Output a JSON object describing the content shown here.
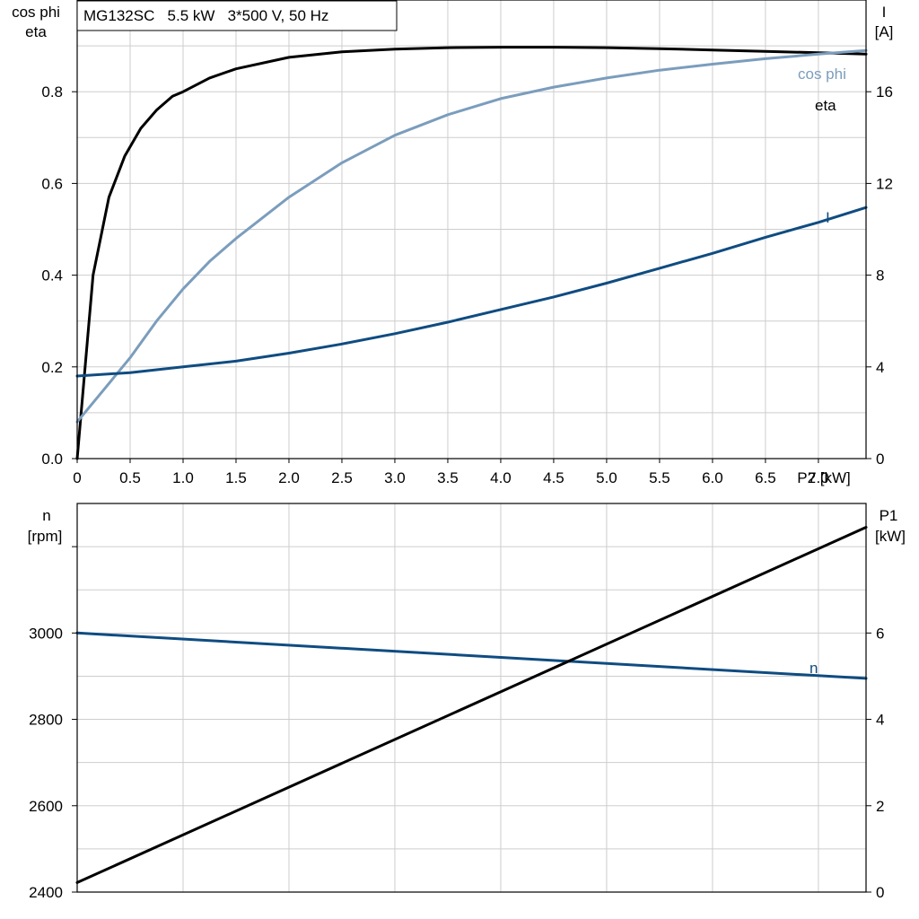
{
  "colors": {
    "eta": "#000000",
    "cos_phi": "#7B9DBD",
    "current": "#0F4C81",
    "speed": "#0F4C81",
    "p1": "#000000",
    "grid": "#CDCDCD",
    "axis": "#000000"
  },
  "chart_data": [
    {
      "type": "line",
      "title": "MG132SC   5.5 kW   3*500 V, 50 Hz",
      "xlabel": "P2 [kW]",
      "x_ticks": [
        "0",
        "0.5",
        "1.0",
        "1.5",
        "2.0",
        "2.5",
        "3.0",
        "3.5",
        "4.0",
        "4.5",
        "5.0",
        "5.5",
        "6.0",
        "6.5",
        "7.0"
      ],
      "xlim": [
        0,
        7.45
      ],
      "grid": true,
      "left_axis": {
        "label_line1": "cos phi",
        "label_line2": "eta",
        "ylim": [
          0,
          1.0
        ],
        "tick_labels": [
          "0.0",
          "0.2",
          "0.4",
          "0.6",
          "0.8"
        ]
      },
      "right_axis": {
        "label_line1": "I",
        "label_line2": "[A]",
        "ylim": [
          0,
          20
        ],
        "tick_labels": [
          "0",
          "4",
          "8",
          "12",
          "16"
        ]
      },
      "series": [
        {
          "name": "eta",
          "axis": "left",
          "x": [
            0,
            0.15,
            0.3,
            0.45,
            0.6,
            0.75,
            0.9,
            1.0,
            1.25,
            1.5,
            2.0,
            2.5,
            3.0,
            3.5,
            4.0,
            4.5,
            5.0,
            5.5,
            6.0,
            6.5,
            7.0,
            7.45
          ],
          "y": [
            0,
            0.4,
            0.57,
            0.66,
            0.72,
            0.76,
            0.79,
            0.8,
            0.83,
            0.85,
            0.875,
            0.887,
            0.893,
            0.896,
            0.897,
            0.897,
            0.896,
            0.894,
            0.891,
            0.888,
            0.885,
            0.882
          ]
        },
        {
          "name": "cos phi",
          "axis": "left",
          "x": [
            0,
            0.25,
            0.5,
            0.75,
            1.0,
            1.25,
            1.5,
            2.0,
            2.5,
            3.0,
            3.5,
            4.0,
            4.5,
            5.0,
            5.5,
            6.0,
            6.5,
            7.0,
            7.45
          ],
          "y": [
            0.08,
            0.15,
            0.22,
            0.3,
            0.37,
            0.43,
            0.48,
            0.57,
            0.645,
            0.705,
            0.75,
            0.785,
            0.81,
            0.83,
            0.847,
            0.86,
            0.872,
            0.882,
            0.89
          ]
        },
        {
          "name": "I",
          "axis": "right",
          "x": [
            0,
            0.5,
            1.0,
            1.5,
            2.0,
            2.5,
            3.0,
            3.5,
            4.0,
            4.5,
            5.0,
            5.5,
            6.0,
            6.5,
            7.0,
            7.45
          ],
          "y": [
            3.6,
            3.75,
            4.0,
            4.25,
            4.6,
            5.0,
            5.45,
            5.95,
            6.5,
            7.05,
            7.65,
            8.3,
            8.95,
            9.65,
            10.3,
            10.95
          ]
        }
      ]
    },
    {
      "type": "line",
      "xlim": [
        0,
        7.45
      ],
      "grid": true,
      "left_axis": {
        "label_line1": "n",
        "label_line2": "[rpm]",
        "ylim": [
          2400,
          3300
        ],
        "tick_labels": [
          "2400",
          "2600",
          "2800",
          "3000"
        ]
      },
      "right_axis": {
        "label_line1": "P1",
        "label_line2": "[kW]",
        "ylim": [
          0,
          9
        ],
        "tick_labels": [
          "0",
          "2",
          "4",
          "6"
        ]
      },
      "series": [
        {
          "name": "n",
          "axis": "left",
          "x": [
            0,
            7.45
          ],
          "y": [
            3000,
            2895
          ]
        },
        {
          "axis": "right",
          "x": [
            0,
            7.45
          ],
          "y": [
            0.22,
            8.45
          ]
        }
      ]
    }
  ]
}
